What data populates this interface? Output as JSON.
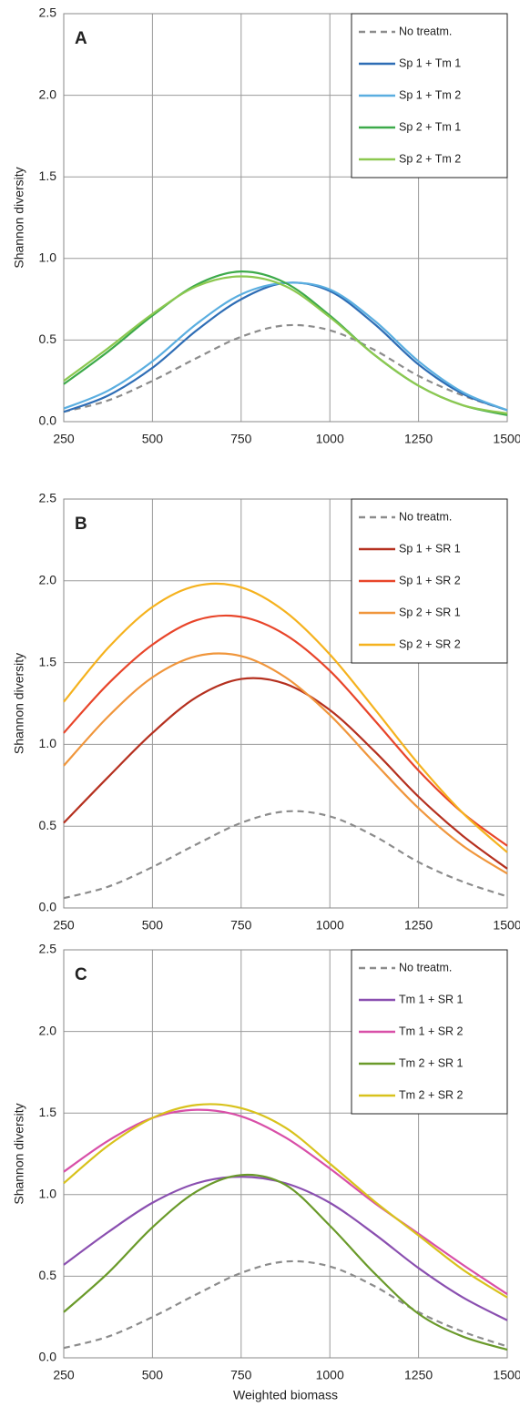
{
  "chart_data": [
    {
      "type": "line",
      "panel_label": "A",
      "ylabel": "Shannon diversity",
      "x": [
        250,
        375,
        500,
        625,
        750,
        875,
        1000,
        1125,
        1250,
        1375,
        1500
      ],
      "xlim": [
        250,
        1500
      ],
      "xticks": [
        250,
        500,
        750,
        1000,
        1250,
        1500
      ],
      "ylim": [
        0,
        2.5
      ],
      "yticks": [
        {
          "value": 0,
          "label": "0.0"
        },
        0.5,
        {
          "value": 1,
          "label": "1.0"
        },
        1.5,
        {
          "value": 2,
          "label": "2.0"
        },
        2.5
      ],
      "grid": true,
      "legend": "upper right",
      "series": [
        {
          "name": "No treatm.",
          "color": "#8c8c8c",
          "dashed": true,
          "values": [
            0.06,
            0.13,
            0.25,
            0.39,
            0.52,
            0.59,
            0.56,
            0.44,
            0.28,
            0.16,
            0.07
          ]
        },
        {
          "name": "Sp 1 + Tm 1",
          "color": "#2e6db5",
          "values": [
            0.06,
            0.16,
            0.33,
            0.56,
            0.75,
            0.85,
            0.8,
            0.6,
            0.35,
            0.17,
            0.07
          ]
        },
        {
          "name": "Sp 1 + Tm 2",
          "color": "#5aaee0",
          "values": [
            0.08,
            0.19,
            0.37,
            0.6,
            0.78,
            0.85,
            0.81,
            0.62,
            0.37,
            0.18,
            0.07
          ]
        },
        {
          "name": "Sp 2 + Tm 1",
          "color": "#3daa4a",
          "values": [
            0.23,
            0.43,
            0.65,
            0.84,
            0.92,
            0.85,
            0.65,
            0.41,
            0.22,
            0.1,
            0.04
          ]
        },
        {
          "name": "Sp 2 + Tm 2",
          "color": "#8cc850",
          "values": [
            0.25,
            0.45,
            0.66,
            0.83,
            0.89,
            0.83,
            0.64,
            0.41,
            0.22,
            0.1,
            0.05
          ]
        }
      ]
    },
    {
      "type": "line",
      "panel_label": "B",
      "ylabel": "Shannon diversity",
      "x": [
        250,
        375,
        500,
        625,
        750,
        875,
        1000,
        1125,
        1250,
        1375,
        1500
      ],
      "xlim": [
        250,
        1500
      ],
      "xticks": [
        250,
        500,
        750,
        1000,
        1250,
        1500
      ],
      "ylim": [
        0,
        2.5
      ],
      "yticks": [
        {
          "value": 0,
          "label": "0.0"
        },
        0.5,
        {
          "value": 1,
          "label": "1.0"
        },
        1.5,
        {
          "value": 2,
          "label": "2.0"
        },
        2.5
      ],
      "grid": true,
      "legend": "upper right",
      "series": [
        {
          "name": "No treatm.",
          "color": "#8c8c8c",
          "dashed": true,
          "values": [
            0.06,
            0.13,
            0.25,
            0.39,
            0.52,
            0.59,
            0.56,
            0.44,
            0.28,
            0.16,
            0.07
          ]
        },
        {
          "name": "Sp 1 + SR 1",
          "color": "#b5301f",
          "values": [
            0.52,
            0.8,
            1.07,
            1.29,
            1.4,
            1.37,
            1.21,
            0.96,
            0.68,
            0.44,
            0.24
          ]
        },
        {
          "name": "Sp 1 + SR 2",
          "color": "#e8452a",
          "values": [
            1.07,
            1.37,
            1.61,
            1.76,
            1.78,
            1.67,
            1.45,
            1.15,
            0.84,
            0.58,
            0.38
          ]
        },
        {
          "name": "Sp 2 + SR 1",
          "color": "#f0963c",
          "values": [
            0.87,
            1.17,
            1.41,
            1.54,
            1.54,
            1.41,
            1.18,
            0.89,
            0.61,
            0.38,
            0.21
          ]
        },
        {
          "name": "Sp 2 + SR 2",
          "color": "#f5b21e",
          "values": [
            1.26,
            1.59,
            1.84,
            1.97,
            1.96,
            1.81,
            1.55,
            1.22,
            0.88,
            0.58,
            0.34
          ]
        }
      ]
    },
    {
      "type": "line",
      "panel_label": "C",
      "ylabel": "Shannon diversity",
      "xlabel": "Weighted biomass",
      "x": [
        250,
        375,
        500,
        625,
        750,
        875,
        1000,
        1125,
        1250,
        1375,
        1500
      ],
      "xlim": [
        250,
        1500
      ],
      "xticks": [
        250,
        500,
        750,
        1000,
        1250,
        1500
      ],
      "ylim": [
        0,
        2.5
      ],
      "yticks": [
        {
          "value": 0,
          "label": "0.0"
        },
        0.5,
        {
          "value": 1,
          "label": "1.0"
        },
        1.5,
        {
          "value": 2,
          "label": "2.0"
        },
        2.5
      ],
      "grid": true,
      "legend": "upper right",
      "series": [
        {
          "name": "No treatm.",
          "color": "#8c8c8c",
          "dashed": true,
          "values": [
            0.06,
            0.13,
            0.25,
            0.39,
            0.52,
            0.59,
            0.56,
            0.44,
            0.28,
            0.16,
            0.07
          ]
        },
        {
          "name": "Tm 1 + SR 1",
          "color": "#8a4fb0",
          "values": [
            0.57,
            0.77,
            0.95,
            1.07,
            1.11,
            1.07,
            0.95,
            0.76,
            0.55,
            0.37,
            0.23
          ]
        },
        {
          "name": "Tm 1 + SR 2",
          "color": "#d84fa8",
          "values": [
            1.14,
            1.33,
            1.47,
            1.52,
            1.48,
            1.35,
            1.16,
            0.95,
            0.76,
            0.57,
            0.39
          ]
        },
        {
          "name": "Tm 2 + SR 1",
          "color": "#6a9a2a",
          "values": [
            0.28,
            0.52,
            0.8,
            1.02,
            1.12,
            1.06,
            0.81,
            0.52,
            0.27,
            0.13,
            0.05
          ]
        },
        {
          "name": "Tm 2 + SR 2",
          "color": "#d8c21c",
          "values": [
            1.07,
            1.3,
            1.47,
            1.55,
            1.53,
            1.41,
            1.19,
            0.96,
            0.75,
            0.54,
            0.37
          ]
        }
      ]
    }
  ]
}
